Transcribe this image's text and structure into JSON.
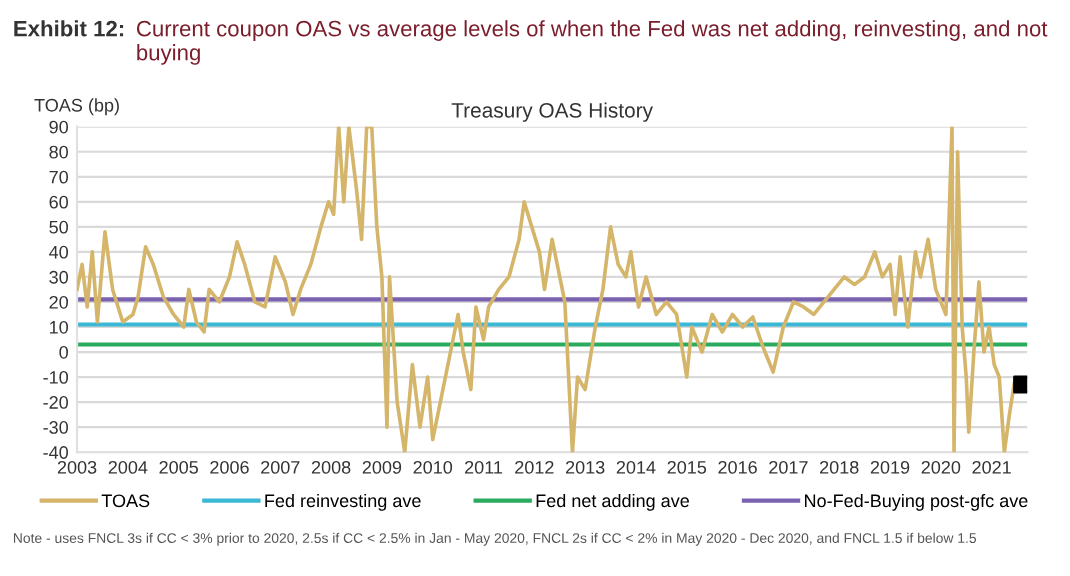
{
  "chart_data": {
    "type": "line",
    "title": "Exhibit 12:",
    "subtitle": "Current coupon OAS vs average levels of when the Fed was net adding, reinvesting, and not buying",
    "ylabel": "TOAS (bp)",
    "annotations": [
      "Treasury OAS History",
      "Note - uses FNCL 3s if CC < 3% prior to 2020, 2.5s if CC < 2.5% in Jan - May 2020, FNCL 2s if CC < 2% in May 2020 - Dec 2020, and FNCL 1.5 if below 1.5"
    ],
    "xlim": [
      2003,
      2021.7
    ],
    "xticks": [
      2003,
      2004,
      2005,
      2006,
      2007,
      2008,
      2009,
      2010,
      2011,
      2012,
      2013,
      2014,
      2015,
      2016,
      2017,
      2018,
      2019,
      2020,
      2021
    ],
    "ylim": [
      -40,
      90
    ],
    "yticks": [
      -40,
      -30,
      -20,
      -10,
      0,
      10,
      20,
      30,
      40,
      50,
      60,
      70,
      80,
      90
    ],
    "grid": "y",
    "legend": "bottom",
    "series": [
      {
        "name": "TOAS",
        "color": "#d4b56a",
        "x": [
          2003.0,
          2003.1,
          2003.2,
          2003.3,
          2003.4,
          2003.55,
          2003.7,
          2003.9,
          2004.1,
          2004.2,
          2004.35,
          2004.5,
          2004.7,
          2004.9,
          2005.1,
          2005.2,
          2005.35,
          2005.5,
          2005.6,
          2005.8,
          2006.0,
          2006.15,
          2006.3,
          2006.5,
          2006.7,
          2006.9,
          2007.1,
          2007.25,
          2007.4,
          2007.6,
          2007.8,
          2007.95,
          2008.05,
          2008.15,
          2008.25,
          2008.35,
          2008.5,
          2008.6,
          2008.7,
          2008.8,
          2008.9,
          2009.0,
          2009.1,
          2009.15,
          2009.3,
          2009.45,
          2009.6,
          2009.75,
          2009.9,
          2010.0,
          2010.2,
          2010.4,
          2010.5,
          2010.6,
          2010.75,
          2010.85,
          2011.0,
          2011.1,
          2011.3,
          2011.5,
          2011.7,
          2011.8,
          2011.95,
          2012.1,
          2012.2,
          2012.35,
          2012.5,
          2012.6,
          2012.75,
          2012.85,
          2013.0,
          2013.2,
          2013.35,
          2013.5,
          2013.65,
          2013.8,
          2013.9,
          2014.05,
          2014.2,
          2014.4,
          2014.6,
          2014.8,
          2015.0,
          2015.1,
          2015.3,
          2015.5,
          2015.7,
          2015.9,
          2016.1,
          2016.3,
          2016.5,
          2016.7,
          2016.9,
          2017.1,
          2017.3,
          2017.5,
          2017.7,
          2017.9,
          2018.1,
          2018.3,
          2018.5,
          2018.7,
          2018.85,
          2019.0,
          2019.1,
          2019.2,
          2019.35,
          2019.5,
          2019.6,
          2019.75,
          2019.9,
          2020.1,
          2020.22,
          2020.26,
          2020.33,
          2020.42,
          2020.5,
          2020.55,
          2020.65,
          2020.75,
          2020.85,
          2020.95,
          2021.05,
          2021.15,
          2021.25,
          2021.35,
          2021.45,
          2021.55
        ],
        "values": [
          25,
          35,
          18,
          40,
          12,
          48,
          25,
          12,
          15,
          22,
          42,
          35,
          22,
          15,
          10,
          25,
          12,
          8,
          25,
          20,
          30,
          44,
          35,
          20,
          18,
          38,
          28,
          15,
          25,
          35,
          50,
          60,
          55,
          90,
          60,
          90,
          65,
          45,
          90,
          90,
          50,
          30,
          -30,
          30,
          -20,
          -40,
          -5,
          -30,
          -10,
          -35,
          -15,
          5,
          15,
          0,
          -15,
          18,
          5,
          18,
          25,
          30,
          45,
          60,
          50,
          40,
          25,
          45,
          30,
          20,
          -40,
          -10,
          -15,
          10,
          25,
          50,
          35,
          30,
          40,
          18,
          30,
          15,
          20,
          15,
          -10,
          10,
          0,
          15,
          8,
          15,
          10,
          14,
          2,
          -8,
          10,
          20,
          18,
          15,
          20,
          25,
          30,
          27,
          30,
          40,
          30,
          35,
          15,
          38,
          10,
          40,
          30,
          45,
          25,
          15,
          90,
          -40,
          80,
          10,
          -10,
          -32,
          0,
          28,
          0,
          10,
          -5,
          -10,
          -40,
          -25,
          -12,
          -13
        ]
      },
      {
        "color": "#000000",
        "type": "scatter",
        "marker": "square",
        "x": [
          2021.6
        ],
        "values": [
          -13
        ]
      }
    ],
    "ref_lines": [
      {
        "axis": "y",
        "value": 11,
        "label": "Fed reinvesting ave",
        "color": "#3bb8d6"
      },
      {
        "axis": "y",
        "value": 3,
        "label": "Fed net adding ave",
        "color": "#2aab5e"
      },
      {
        "axis": "y",
        "value": 21,
        "label": "No-Fed-Buying post-gfc ave",
        "color": "#7b62b0"
      }
    ]
  }
}
